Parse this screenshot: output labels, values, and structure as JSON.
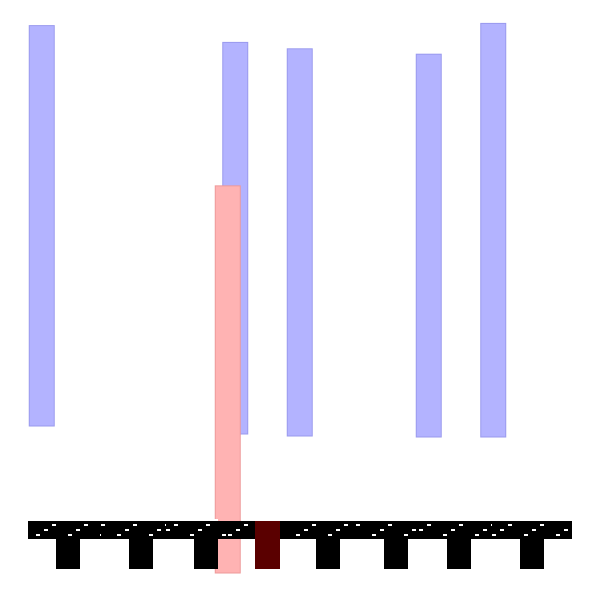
{
  "chart_data": {
    "type": "bar",
    "categories": [
      "",
      "",
      "",
      "",
      "",
      "",
      "",
      ""
    ],
    "series": [
      {
        "values": [
          0.91,
          null,
          null,
          0.89,
          0.88,
          null,
          0.87,
          0.94
        ],
        "color": "#b3b3ff",
        "edge_color": "#9a9aee"
      },
      {
        "values": [
          null,
          null,
          null,
          null,
          null,
          null,
          null,
          null
        ],
        "color": "#ffb3b3",
        "edge_color": "#ee9a9a"
      }
    ],
    "baseline_outlier": {
      "category_index": 3,
      "value": 0.89,
      "color": "#ffb3b3"
    },
    "title": "",
    "xlabel": "",
    "ylabel": "",
    "ylim": [
      0,
      1
    ],
    "grid": false,
    "legend": "none"
  }
}
